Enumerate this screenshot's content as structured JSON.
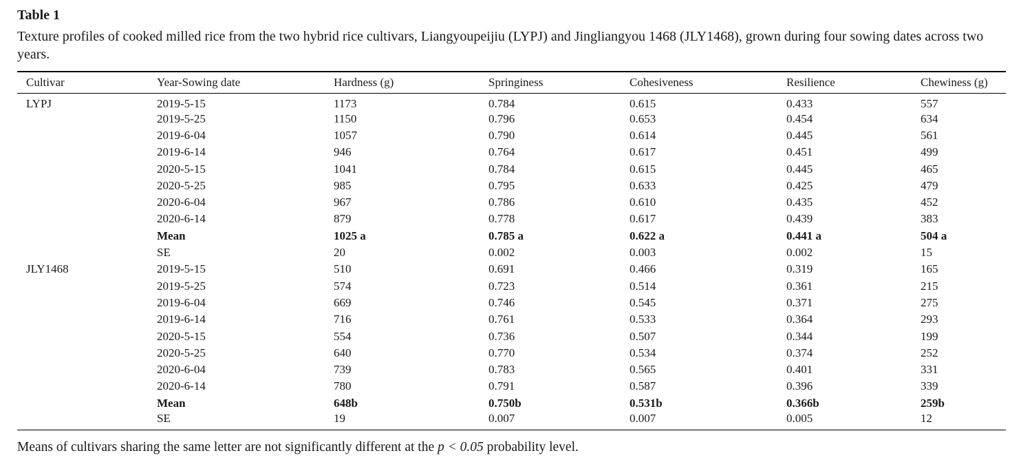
{
  "page": {
    "title": "Table 1",
    "caption": "Texture profiles of cooked milled rice from the two hybrid rice cultivars, Liangyoupeijiu (LYPJ) and Jingliangyou 1468 (JLY1468), grown during four sowing dates across two years.",
    "footnote_prefix": "Means of cultivars sharing the same letter are not significantly different at the ",
    "footnote_italic": "p < 0.05",
    "footnote_suffix": " probability level."
  },
  "chart_data": {
    "type": "table",
    "title": "Table 1",
    "columns": [
      "Cultivar",
      "Year-Sowing date",
      "Hardness (g)",
      "Springiness",
      "Cohesiveness",
      "Resilience",
      "Chewiness (g)"
    ],
    "rows": [
      {
        "bold": false,
        "cells": [
          "LYPJ",
          "2019-5-15",
          "1173",
          "0.784",
          "0.615",
          "0.433",
          "557"
        ]
      },
      {
        "bold": false,
        "cells": [
          "",
          "2019-5-25",
          "1150",
          "0.796",
          "0.653",
          "0.454",
          "634"
        ]
      },
      {
        "bold": false,
        "cells": [
          "",
          "2019-6-04",
          "1057",
          "0.790",
          "0.614",
          "0.445",
          "561"
        ]
      },
      {
        "bold": false,
        "cells": [
          "",
          "2019-6-14",
          "946",
          "0.764",
          "0.617",
          "0.451",
          "499"
        ]
      },
      {
        "bold": false,
        "cells": [
          "",
          "2020-5-15",
          "1041",
          "0.784",
          "0.615",
          "0.445",
          "465"
        ]
      },
      {
        "bold": false,
        "cells": [
          "",
          "2020-5-25",
          "985",
          "0.795",
          "0.633",
          "0.425",
          "479"
        ]
      },
      {
        "bold": false,
        "cells": [
          "",
          "2020-6-04",
          "967",
          "0.786",
          "0.610",
          "0.435",
          "452"
        ]
      },
      {
        "bold": false,
        "cells": [
          "",
          "2020-6-14",
          "879",
          "0.778",
          "0.617",
          "0.439",
          "383"
        ]
      },
      {
        "bold": true,
        "cells": [
          "",
          "Mean",
          "1025 a",
          "0.785 a",
          "0.622 a",
          "0.441 a",
          "504 a"
        ]
      },
      {
        "bold": false,
        "cells": [
          "",
          "SE",
          "20",
          "0.002",
          "0.003",
          "0.002",
          "15"
        ]
      },
      {
        "bold": false,
        "cells": [
          "JLY1468",
          "2019-5-15",
          "510",
          "0.691",
          "0.466",
          "0.319",
          "165"
        ]
      },
      {
        "bold": false,
        "cells": [
          "",
          "2019-5-25",
          "574",
          "0.723",
          "0.514",
          "0.361",
          "215"
        ]
      },
      {
        "bold": false,
        "cells": [
          "",
          "2019-6-04",
          "669",
          "0.746",
          "0.545",
          "0.371",
          "275"
        ]
      },
      {
        "bold": false,
        "cells": [
          "",
          "2019-6-14",
          "716",
          "0.761",
          "0.533",
          "0.364",
          "293"
        ]
      },
      {
        "bold": false,
        "cells": [
          "",
          "2020-5-15",
          "554",
          "0.736",
          "0.507",
          "0.344",
          "199"
        ]
      },
      {
        "bold": false,
        "cells": [
          "",
          "2020-5-25",
          "640",
          "0.770",
          "0.534",
          "0.374",
          "252"
        ]
      },
      {
        "bold": false,
        "cells": [
          "",
          "2020-6-04",
          "739",
          "0.783",
          "0.565",
          "0.401",
          "331"
        ]
      },
      {
        "bold": false,
        "cells": [
          "",
          "2020-6-14",
          "780",
          "0.791",
          "0.587",
          "0.396",
          "339"
        ]
      },
      {
        "bold": true,
        "cells": [
          "",
          "Mean",
          "648b",
          "0.750b",
          "0.531b",
          "0.366b",
          "259b"
        ]
      },
      {
        "bold": false,
        "cells": [
          "",
          "SE",
          "19",
          "0.007",
          "0.007",
          "0.005",
          "12"
        ]
      }
    ]
  }
}
